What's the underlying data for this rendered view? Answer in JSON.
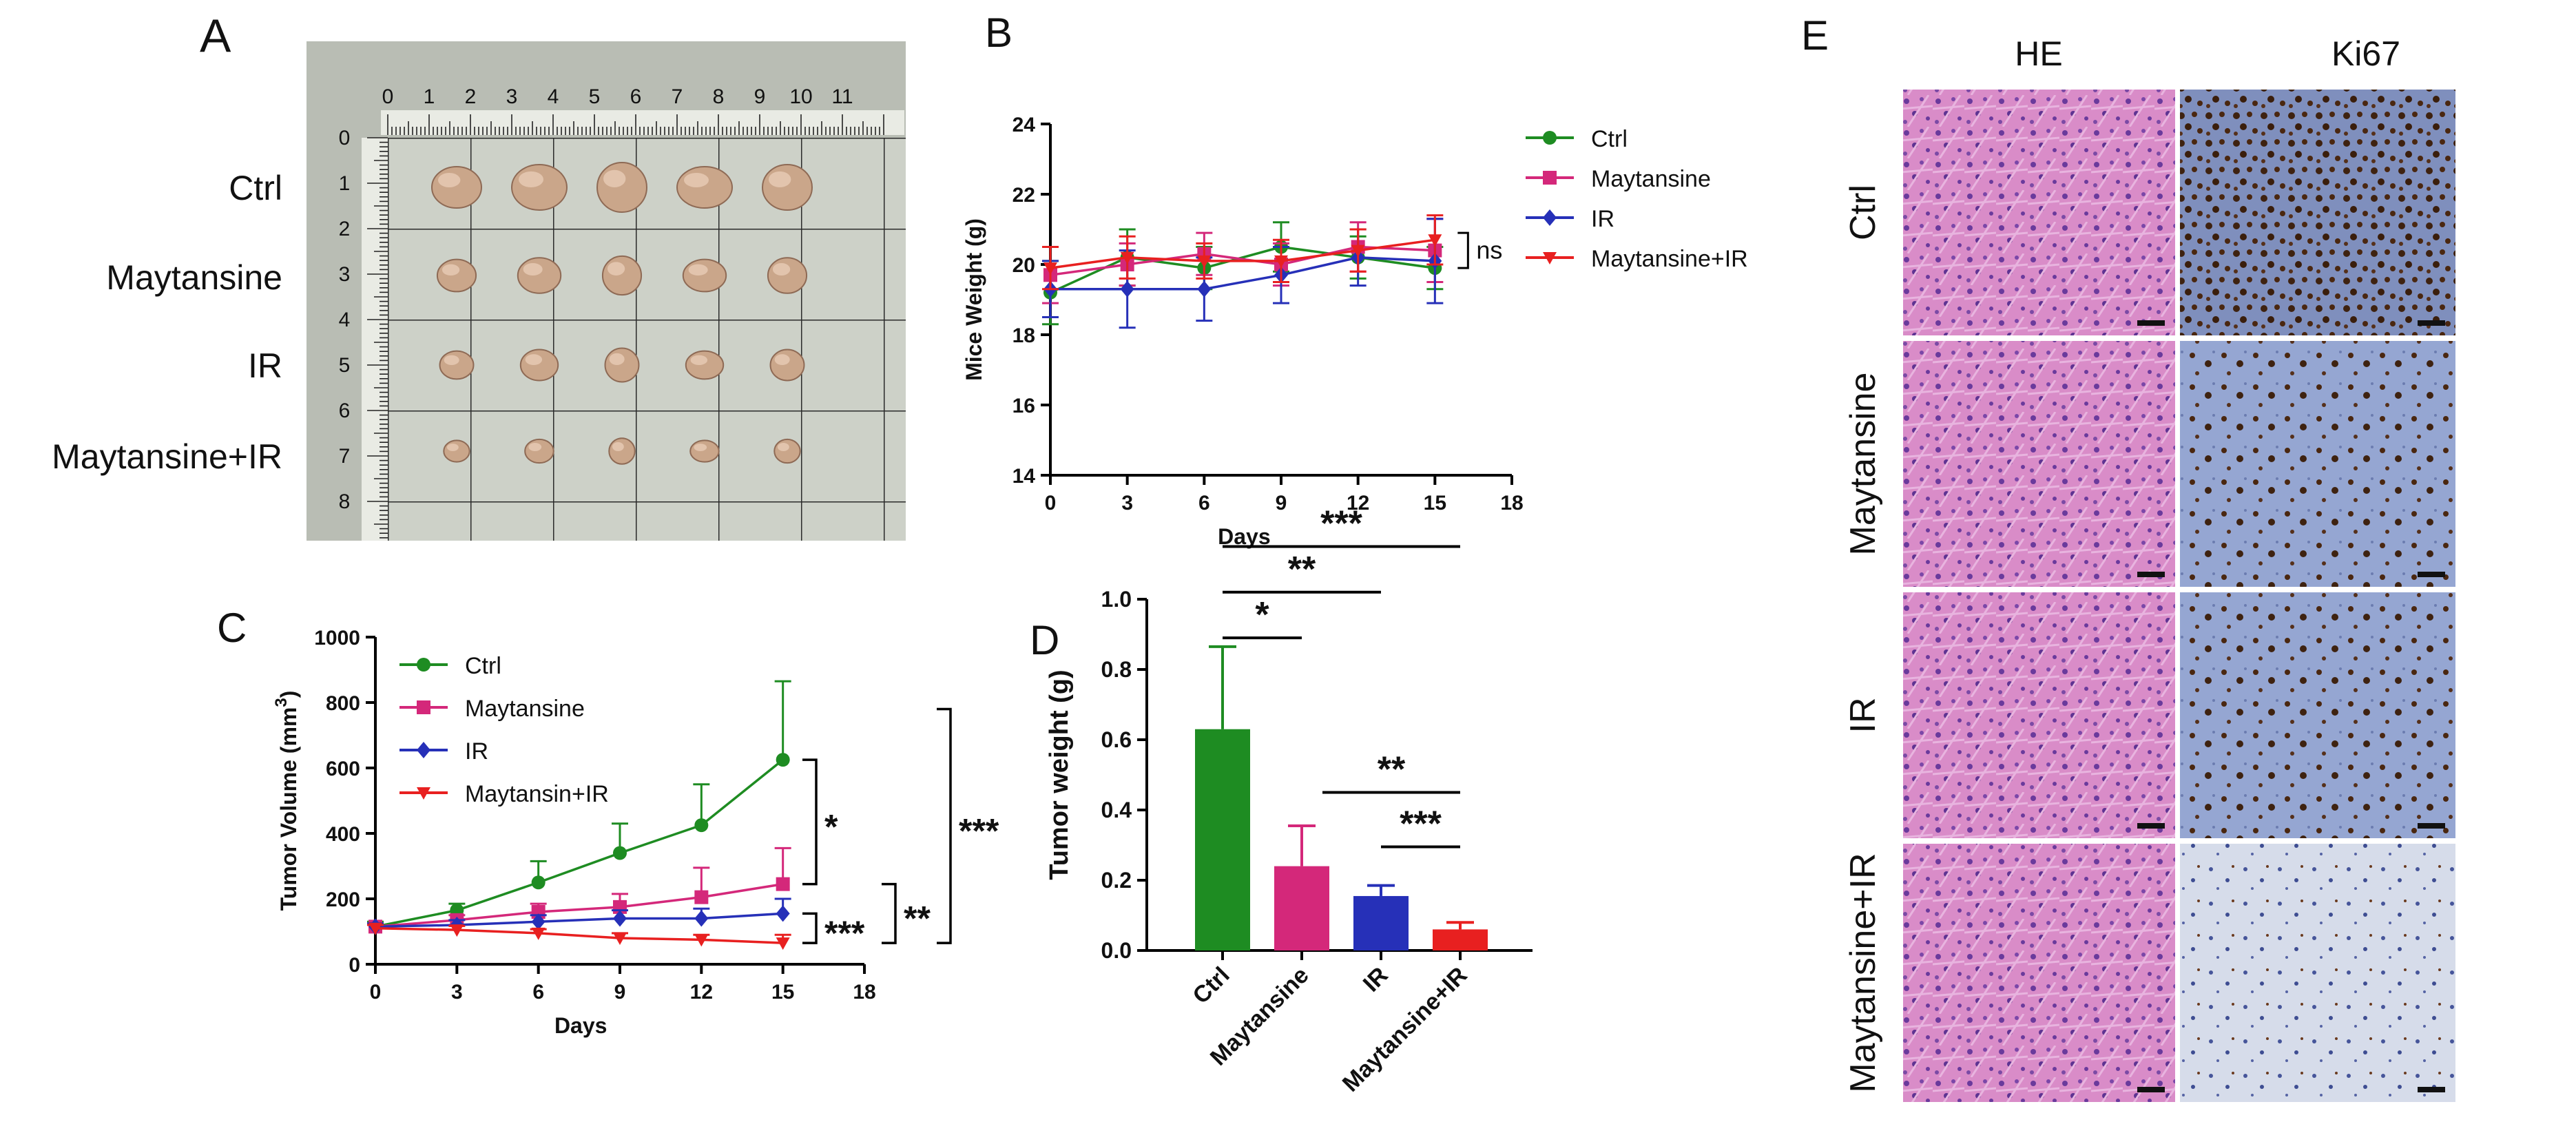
{
  "panel_letters": [
    "A",
    "B",
    "C",
    "D",
    "E"
  ],
  "colors": {
    "ctrl": "#1e8c22",
    "maytansine": "#d4287a",
    "ir": "#2630b8",
    "combo": "#e82020",
    "he_pink": "#d77fc0",
    "ki67_blue": "#8ea0cc",
    "ki67_brown": "#4a2710",
    "grid_paper": "#c9cdc4"
  },
  "panel_a": {
    "group_labels": [
      "Ctrl",
      "Maytansine",
      "IR",
      "Maytansine+IR"
    ],
    "ruler_top": [
      "0",
      "1",
      "2",
      "3",
      "4",
      "5",
      "6",
      "7",
      "8",
      "9",
      "10",
      "11"
    ],
    "ruler_left": [
      "0",
      "1",
      "2",
      "3",
      "4",
      "5",
      "6",
      "7",
      "8"
    ],
    "tumors_per_group": 5
  },
  "panel_e": {
    "column_headers": [
      "HE",
      "Ki67"
    ],
    "row_labels": [
      "Ctrl",
      "Maytansine",
      "IR",
      "Maytansine+IR"
    ]
  },
  "chart_data": [
    {
      "id": "B",
      "type": "line",
      "title": "",
      "xlabel": "Days",
      "ylabel": "Mice Weight (g)",
      "x": [
        0,
        3,
        6,
        9,
        12,
        15
      ],
      "xlim": [
        0,
        18
      ],
      "xticks": [
        "0",
        "3",
        "6",
        "9",
        "12",
        "15",
        "18"
      ],
      "ylim": [
        14,
        24
      ],
      "yticks": [
        "14",
        "16",
        "18",
        "20",
        "22",
        "24"
      ],
      "legend_position": "top-right",
      "series": [
        {
          "name": "Ctrl",
          "color": "#1e8c22",
          "marker": "circle",
          "values": [
            19.2,
            20.2,
            19.9,
            20.5,
            20.2,
            19.9
          ],
          "errors": [
            0.9,
            0.8,
            0.6,
            0.7,
            0.6,
            0.6
          ]
        },
        {
          "name": "Maytansine",
          "color": "#d4287a",
          "marker": "square",
          "values": [
            19.7,
            20.0,
            20.3,
            20.0,
            20.5,
            20.4
          ],
          "errors": [
            0.8,
            0.6,
            0.6,
            0.6,
            0.7,
            0.9
          ]
        },
        {
          "name": "IR",
          "color": "#2630b8",
          "marker": "diamond",
          "values": [
            19.3,
            19.3,
            19.3,
            19.7,
            20.2,
            20.1
          ],
          "errors": [
            0.8,
            1.1,
            0.9,
            0.8,
            0.8,
            1.2
          ]
        },
        {
          "name": "Maytansine+IR",
          "color": "#e82020",
          "marker": "triangle-down",
          "values": [
            19.9,
            20.2,
            20.1,
            20.1,
            20.4,
            20.7
          ],
          "errors": [
            0.6,
            0.6,
            0.5,
            0.6,
            0.6,
            0.7
          ]
        }
      ],
      "annotations": [
        {
          "text": "ns",
          "bracket_y": [
            20.9,
            19.9
          ]
        }
      ]
    },
    {
      "id": "C",
      "type": "line",
      "title": "",
      "xlabel": "Days",
      "ylabel": "Tumor Volume (mm",
      "ylabel_super": "3",
      "ylabel_end": ")",
      "x": [
        0,
        3,
        6,
        9,
        12,
        15
      ],
      "xlim": [
        0,
        18
      ],
      "xticks": [
        "0",
        "3",
        "6",
        "9",
        "12",
        "15",
        "18"
      ],
      "ylim": [
        0,
        1000
      ],
      "yticks": [
        "0",
        "200",
        "400",
        "600",
        "800",
        "1000"
      ],
      "legend_position": "top-left",
      "series": [
        {
          "name": "Ctrl",
          "color": "#1e8c22",
          "marker": "circle",
          "values": [
            115,
            165,
            250,
            340,
            425,
            625
          ],
          "errors": [
            15,
            20,
            65,
            90,
            125,
            240
          ]
        },
        {
          "name": "Maytansine",
          "color": "#d4287a",
          "marker": "square",
          "values": [
            115,
            135,
            160,
            175,
            205,
            245
          ],
          "errors": [
            10,
            15,
            25,
            40,
            90,
            110
          ]
        },
        {
          "name": "IR",
          "color": "#2630b8",
          "marker": "diamond",
          "values": [
            115,
            120,
            130,
            140,
            140,
            155
          ],
          "errors": [
            10,
            15,
            20,
            25,
            30,
            45
          ]
        },
        {
          "name": "Maytansin+IR",
          "color": "#e82020",
          "marker": "triangle-down",
          "values": [
            110,
            105,
            95,
            80,
            75,
            65
          ],
          "errors": [
            10,
            12,
            12,
            15,
            15,
            25
          ]
        }
      ],
      "annotations": [
        {
          "text": "*",
          "bracket_y": [
            625,
            245
          ]
        },
        {
          "text": "***",
          "bracket_y": [
            155,
            65
          ]
        },
        {
          "text": "**",
          "bracket_y": [
            245,
            65
          ]
        },
        {
          "text": "***",
          "bracket_y": [
            780,
            65
          ]
        }
      ]
    },
    {
      "id": "D",
      "type": "bar",
      "title": "",
      "xlabel": "",
      "ylabel": "Tumor weight (g)",
      "categories": [
        "Ctrl",
        "Maytansine",
        "IR",
        "Maytansine+IR"
      ],
      "values": [
        0.63,
        0.24,
        0.155,
        0.06
      ],
      "errors": [
        0.235,
        0.115,
        0.03,
        0.02
      ],
      "colors": [
        "#1e8c22",
        "#d4287a",
        "#2630b8",
        "#e82020"
      ],
      "ylim": [
        0,
        1.0
      ],
      "yticks": [
        "0.0",
        "0.2",
        "0.4",
        "0.6",
        "0.8",
        "1.0"
      ],
      "significance": [
        {
          "from": 0,
          "to": 1,
          "text": "*"
        },
        {
          "from": 0,
          "to": 2,
          "text": "**"
        },
        {
          "from": 0,
          "to": 3,
          "text": "***"
        },
        {
          "from": 1,
          "to": 3,
          "text": "**"
        },
        {
          "from": 2,
          "to": 3,
          "text": "***"
        }
      ]
    }
  ]
}
